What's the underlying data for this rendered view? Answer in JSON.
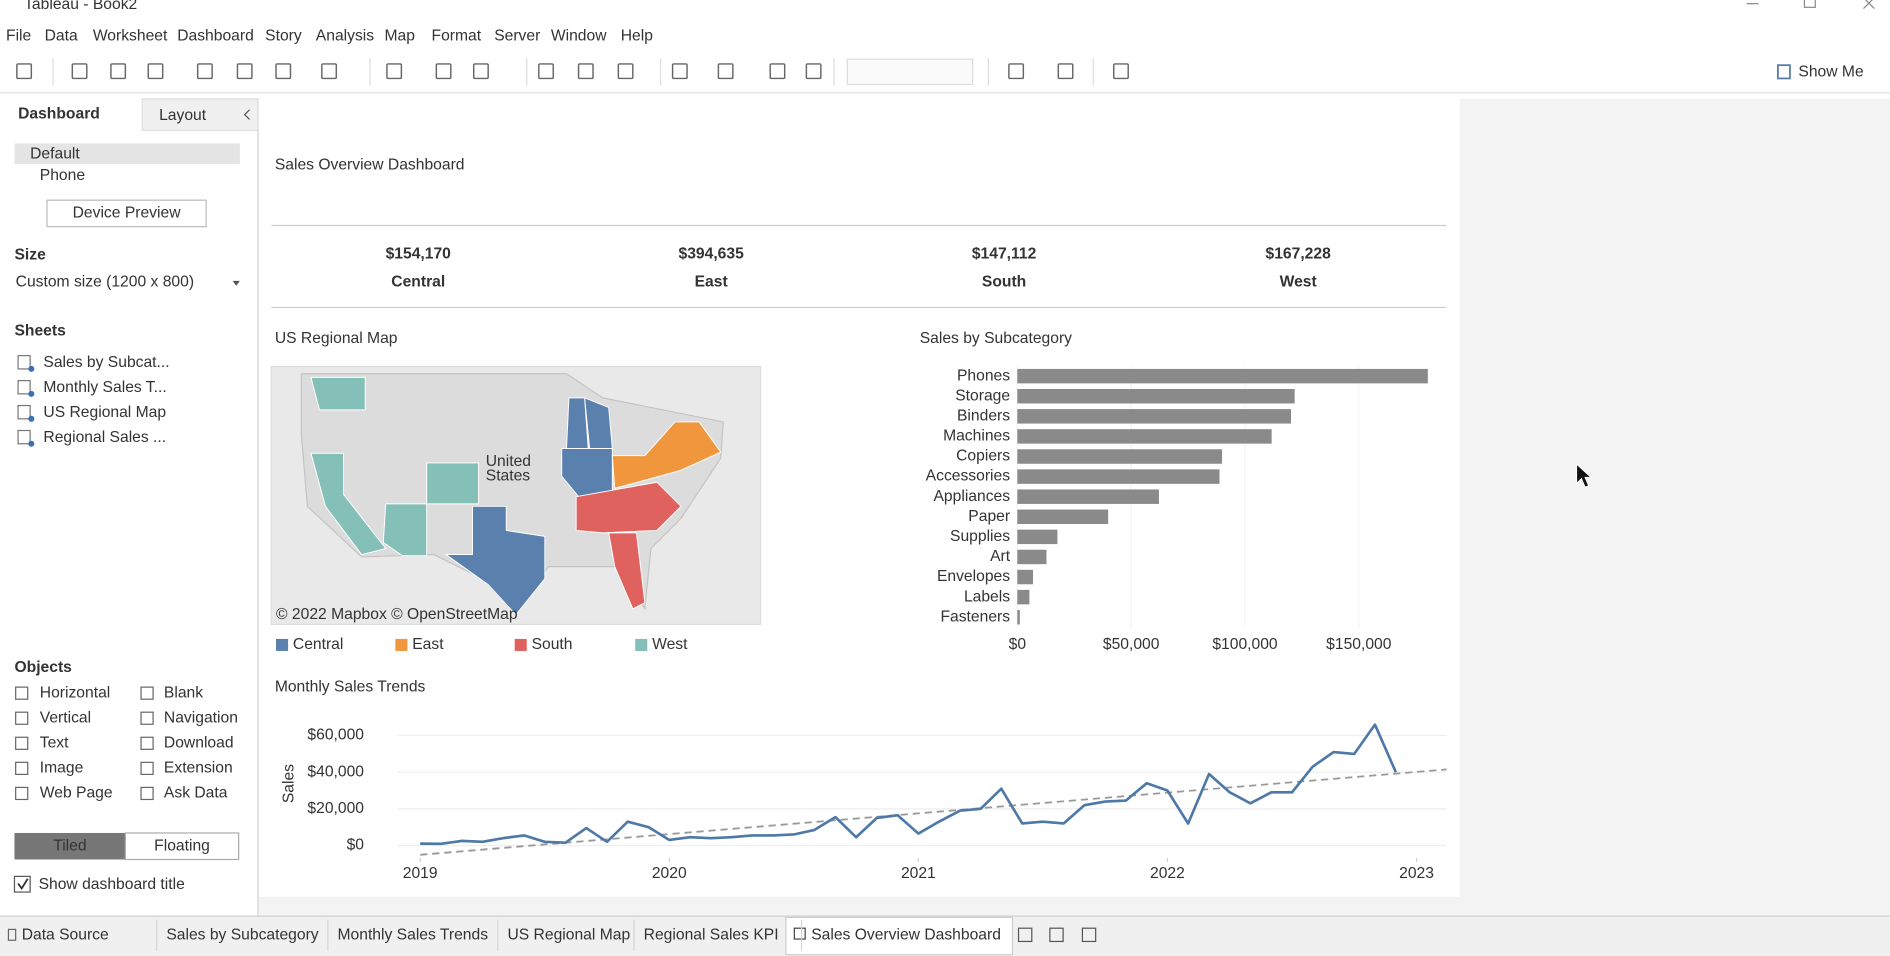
{
  "window": {
    "title": "Tableau - Book2"
  },
  "menu": [
    "File",
    "Data",
    "Worksheet",
    "Dashboard",
    "Story",
    "Analysis",
    "Map",
    "Format",
    "Server",
    "Window",
    "Help"
  ],
  "toolbar": {
    "show_me": "Show Me"
  },
  "sidebar": {
    "tabs": [
      "Dashboard",
      "Layout"
    ],
    "devices": [
      "Default",
      "Phone"
    ],
    "device_preview": "Device Preview",
    "size_heading": "Size",
    "size": "Custom size (1200 x 800)",
    "sheets_heading": "Sheets",
    "sheets": [
      "Sales by Subcat...",
      "Monthly Sales T...",
      "US Regional Map",
      "Regional Sales ..."
    ],
    "objects_heading": "Objects",
    "objects": [
      "Horizontal",
      "Blank",
      "Vertical",
      "Navigation",
      "Text",
      "Download",
      "Image",
      "Extension",
      "Web Page",
      "Ask Data"
    ],
    "layout_modes": [
      "Tiled",
      "Floating"
    ],
    "show_title": "Show dashboard title"
  },
  "dashboard": {
    "title": "Sales Overview Dashboard",
    "kpis": [
      {
        "value": "$154,170",
        "label": "Central"
      },
      {
        "value": "$394,635",
        "label": "East"
      },
      {
        "value": "$147,112",
        "label": "South"
      },
      {
        "value": "$167,228",
        "label": "West"
      }
    ],
    "map": {
      "title": "US Regional Map",
      "country_label": [
        "United",
        "States"
      ],
      "attribution": "© 2022 Mapbox © OpenStreetMap",
      "legend": [
        {
          "name": "Central",
          "color": "#5a80ad"
        },
        {
          "name": "East",
          "color": "#f0963c"
        },
        {
          "name": "South",
          "color": "#e0625f"
        },
        {
          "name": "West",
          "color": "#84bfb8"
        }
      ]
    },
    "bar_chart": {
      "type": "bar",
      "title": "Sales by Subcategory",
      "categories": [
        "Phones",
        "Storage",
        "Binders",
        "Machines",
        "Copiers",
        "Accessories",
        "Appliances",
        "Paper",
        "Supplies",
        "Art",
        "Envelopes",
        "Labels",
        "Fasteners"
      ],
      "values": [
        180300,
        121800,
        120200,
        111700,
        89900,
        88800,
        62200,
        39900,
        17600,
        12800,
        6900,
        5300,
        1100
      ],
      "color": "#8a8a8a",
      "xlim": [
        0,
        189000
      ],
      "xticks": [
        {
          "value": 0,
          "label": "$0"
        },
        {
          "value": 50000,
          "label": "$50,000"
        },
        {
          "value": 100000,
          "label": "$100,000"
        },
        {
          "value": 150000,
          "label": "$150,000"
        }
      ]
    },
    "line_chart": {
      "type": "line",
      "title": "Monthly Sales Trends",
      "y_label": "Sales",
      "x": [
        2019,
        2019.083,
        2019.167,
        2019.25,
        2019.333,
        2019.417,
        2019.5,
        2019.583,
        2019.667,
        2019.75,
        2019.833,
        2019.917,
        2020,
        2020.083,
        2020.167,
        2020.25,
        2020.333,
        2020.417,
        2020.5,
        2020.583,
        2020.667,
        2020.75,
        2020.833,
        2020.917,
        2021,
        2021.083,
        2021.167,
        2021.25,
        2021.333,
        2021.417,
        2021.5,
        2021.583,
        2021.667,
        2021.75,
        2021.833,
        2021.917,
        2022,
        2022.083,
        2022.167,
        2022.25,
        2022.333,
        2022.417,
        2022.5,
        2022.583,
        2022.667,
        2022.75,
        2022.833,
        2022.917
      ],
      "values": [
        1000,
        900,
        2500,
        2000,
        4000,
        5500,
        2000,
        1500,
        9500,
        2000,
        13000,
        10000,
        3000,
        4500,
        4000,
        4500,
        5500,
        5500,
        6000,
        8500,
        15500,
        4500,
        15000,
        16500,
        6500,
        13000,
        19000,
        20000,
        31000,
        12000,
        13000,
        12000,
        22000,
        24000,
        24500,
        34000,
        30000,
        12000,
        39000,
        29000,
        23000,
        29000,
        29000,
        43000,
        51000,
        50000,
        66000,
        40000
      ],
      "color": "#4e79a7",
      "trend_line": true,
      "xlim": [
        2018.91,
        2023.12
      ],
      "xticks": [
        2019,
        2020,
        2021,
        2022,
        2023
      ],
      "ylim": [
        -7000,
        70000
      ],
      "yticks": [
        {
          "value": 0,
          "label": "$0"
        },
        {
          "value": 20000,
          "label": "$20,000"
        },
        {
          "value": 40000,
          "label": "$40,000"
        },
        {
          "value": 60000,
          "label": "$60,000"
        }
      ]
    }
  },
  "tabs": [
    "Data Source",
    "Sales by Subcategory",
    "Monthly Sales Trends",
    "US Regional Map",
    "Regional Sales KPI",
    "Sales Overview Dashboard"
  ]
}
